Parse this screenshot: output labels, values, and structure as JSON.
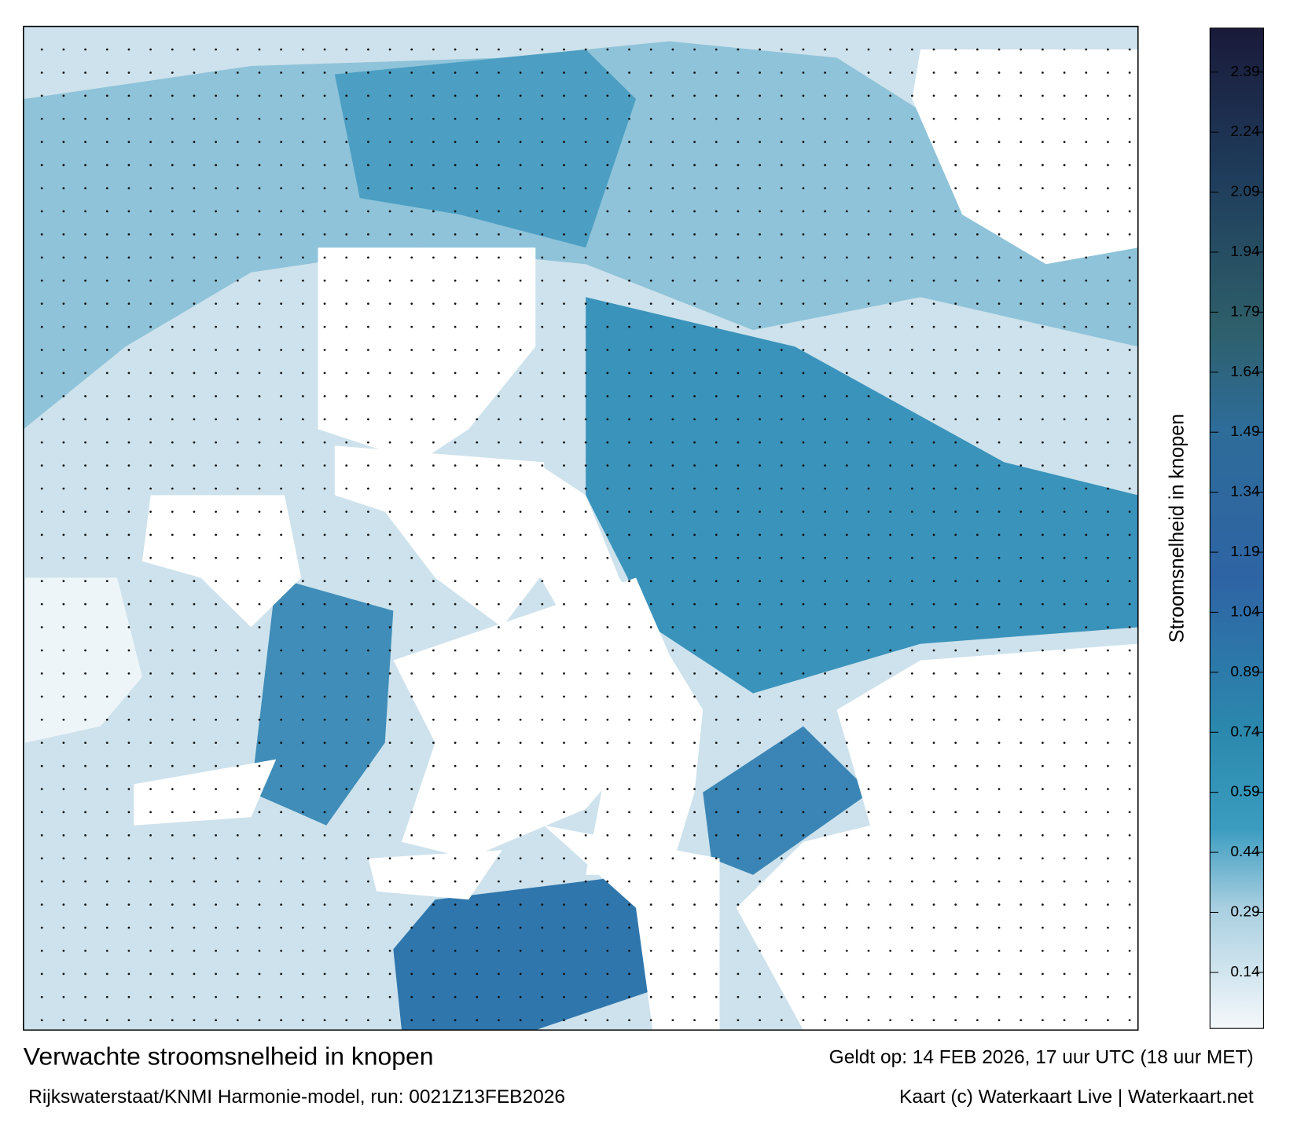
{
  "title": "Verwachte stroomsnelheid in knopen",
  "subtitle": "Rijkswaterstaat/KNMI Harmonie-model, run: 0021Z13FEB2026",
  "valid": "Geldt op: 14 FEB 2026, 17 uur UTC (18 uur MET)",
  "credit": "Kaart (c) Waterkaart Live | Waterkaart.net",
  "colorbar": {
    "label": "Stroomsnelheid in knopen",
    "lim": [
      0,
      2.5
    ],
    "ticks": [
      0.14,
      0.29,
      0.44,
      0.59,
      0.74,
      0.89,
      1.04,
      1.19,
      1.34,
      1.49,
      1.64,
      1.79,
      1.94,
      2.09,
      2.24,
      2.39
    ]
  }
}
